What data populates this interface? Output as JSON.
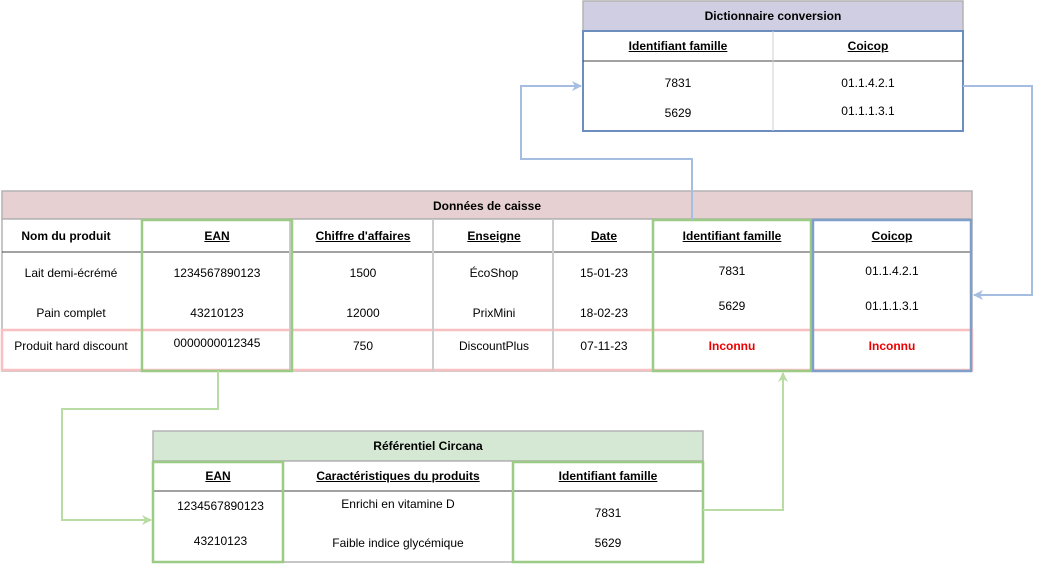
{
  "dico": {
    "title": "Dictionnaire conversion",
    "headers": [
      "Identifiant famille",
      "Coicop"
    ],
    "rows": [
      [
        "7831",
        "01.1.4.2.1"
      ],
      [
        "5629",
        "01.1.1.3.1"
      ]
    ]
  },
  "caisse": {
    "title": "Données de caisse",
    "headers": [
      "Nom du produit",
      "EAN",
      "Chiffre d'affaires",
      "Enseigne",
      "Date",
      "Identifiant famille",
      "Coicop"
    ],
    "rows": [
      [
        "Lait demi-écrémé",
        "1234567890123",
        "1500",
        "ÉcoShop",
        "15-01-23",
        "7831",
        "01.1.4.2.1"
      ],
      [
        "Pain complet",
        "43210123",
        "12000",
        "PrixMini",
        "18-02-23",
        "5629",
        "01.1.1.3.1"
      ],
      [
        "Produit hard discount",
        "0000000012345",
        "750",
        "DiscountPlus",
        "07-11-23",
        "Inconnu",
        "Inconnu"
      ]
    ]
  },
  "circana": {
    "title": "Référentiel Circana",
    "headers": [
      "EAN",
      "Caractéristiques du produits",
      "Identifiant famille"
    ],
    "rows": [
      [
        "1234567890123",
        "Enrichi en vitamine D",
        "7831"
      ],
      [
        "43210123",
        "Faible indice glycémique",
        "5629"
      ]
    ]
  },
  "colors": {
    "blue": "#6c8ebf",
    "green": "#82b366",
    "red": "#f8a3a3",
    "blue_arrow": "#a5bde0",
    "green_arrow": "#b9dba4"
  }
}
